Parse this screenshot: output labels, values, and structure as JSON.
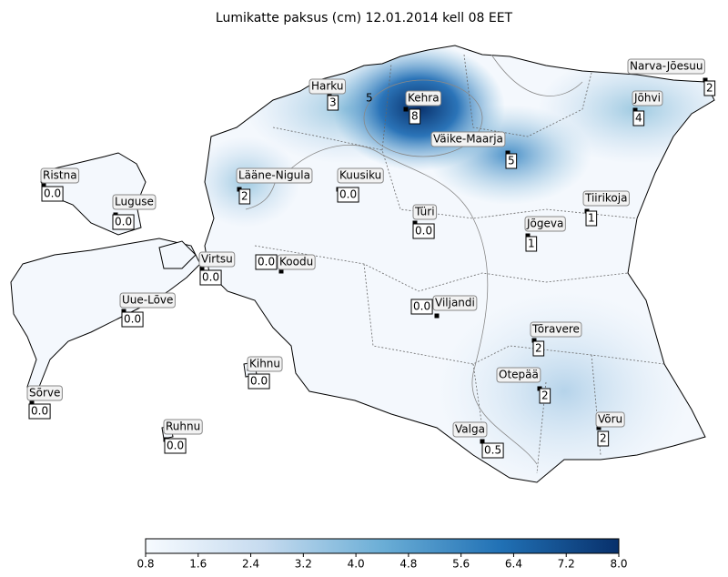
{
  "title": "Lumikatte paksus (cm) 12.01.2014 kell 08 EET",
  "contour_label": "5",
  "stations": [
    {
      "name": "Harku",
      "value": "3"
    },
    {
      "name": "Kehra",
      "value": "8"
    },
    {
      "name": "Narva-Jõesuu",
      "value": "2"
    },
    {
      "name": "Jõhvi",
      "value": "4"
    },
    {
      "name": "Väike-Maarja",
      "value": "5"
    },
    {
      "name": "Ristna",
      "value": "0.0"
    },
    {
      "name": "Lääne-Nigula",
      "value": "2"
    },
    {
      "name": "Kuusiku",
      "value": "0.0"
    },
    {
      "name": "Tiirikoja",
      "value": "1"
    },
    {
      "name": "Luguse",
      "value": "0.0"
    },
    {
      "name": "Türi",
      "value": "0.0"
    },
    {
      "name": "Jõgeva",
      "value": "1"
    },
    {
      "name": "Virtsu",
      "value": "0.0"
    },
    {
      "name": "Koodu",
      "value": "0.0"
    },
    {
      "name": "Uue-Lõve",
      "value": "0.0"
    },
    {
      "name": "Viljandi",
      "value": "0.0"
    },
    {
      "name": "Tõravere",
      "value": "2"
    },
    {
      "name": "Kihnu",
      "value": "0.0"
    },
    {
      "name": "Otepää",
      "value": "2"
    },
    {
      "name": "Sõrve",
      "value": "0.0"
    },
    {
      "name": "Võru",
      "value": "2"
    },
    {
      "name": "Ruhnu",
      "value": "0.0"
    },
    {
      "name": "Valga",
      "value": "0.5"
    }
  ],
  "colorbar": {
    "ticks": [
      "0.8",
      "1.6",
      "2.4",
      "3.2",
      "4.0",
      "4.8",
      "5.6",
      "6.4",
      "7.2",
      "8.0"
    ]
  }
}
